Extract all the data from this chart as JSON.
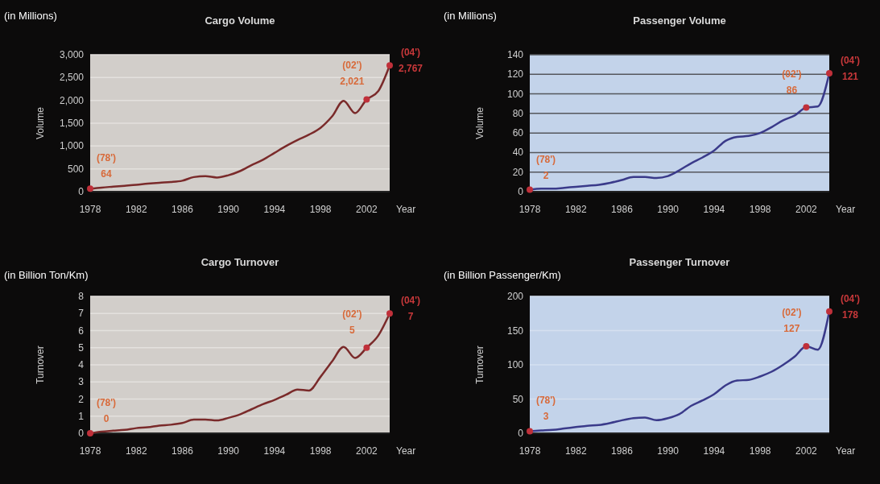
{
  "chart_data": [
    {
      "type": "line",
      "title": "Cargo Volume",
      "subtitle": "(in Millions)",
      "xlabel": "Year",
      "ylabel": "Volume",
      "xlim": [
        1978,
        2004
      ],
      "xticks": [
        1978,
        1982,
        1986,
        1990,
        1994,
        1998,
        2002
      ],
      "ylim": [
        0,
        3000
      ],
      "yticks": [
        0,
        500,
        {
          "value": 1000,
          "label": "1,000"
        },
        {
          "value": 1500,
          "label": "1,500"
        },
        {
          "value": 2000,
          "label": "2,000"
        },
        {
          "value": 2500,
          "label": "2,500"
        },
        {
          "value": 3000,
          "label": "3,000"
        }
      ],
      "grid": "y",
      "series": [
        {
          "color": "#7a2a2a",
          "marker": "none",
          "x": [
            1978,
            1979,
            1980,
            1981,
            1982,
            1983,
            1984,
            1985,
            1986,
            1987,
            1988,
            1989,
            1990,
            1991,
            1992,
            1993,
            1994,
            1995,
            1996,
            1997,
            1998,
            1999,
            2000,
            2001,
            2002,
            2003,
            2004
          ],
          "values": [
            64,
            90,
            110,
            130,
            150,
            175,
            195,
            210,
            240,
            320,
            340,
            310,
            360,
            450,
            580,
            700,
            850,
            1000,
            1130,
            1250,
            1400,
            1650,
            1990,
            1720,
            2021,
            2200,
            2767
          ]
        },
        {
          "type": "scatter",
          "color": "#c0303a",
          "marker": "circle",
          "x": [
            1978,
            2002,
            2004
          ],
          "values": [
            64,
            2021,
            2767
          ]
        }
      ],
      "annotations": [
        {
          "text": "(78')",
          "x": 1978,
          "y": 64
        },
        {
          "text": "64",
          "x": 1978,
          "y": 64
        },
        {
          "text": "(02')",
          "x": 2002,
          "y": 2021
        },
        {
          "text": "2,021",
          "x": 2002,
          "y": 2021
        },
        {
          "text": "(04')",
          "x": 2004,
          "y": 2767
        },
        {
          "text": "2,767",
          "x": 2004,
          "y": 2767
        }
      ]
    },
    {
      "type": "line",
      "title": "Passenger Volume",
      "subtitle": "(in Millions)",
      "xlabel": "Year",
      "ylabel": "Volume",
      "xlim": [
        1978,
        2004
      ],
      "xticks": [
        1978,
        1982,
        1986,
        1990,
        1994,
        1998,
        2002
      ],
      "ylim": [
        0,
        140
      ],
      "yticks": [
        0,
        20,
        40,
        60,
        80,
        100,
        120,
        140
      ],
      "grid": "y",
      "series": [
        {
          "color": "#3a3a8a",
          "marker": "none",
          "x": [
            1978,
            1979,
            1980,
            1981,
            1982,
            1983,
            1984,
            1985,
            1986,
            1987,
            1988,
            1989,
            1990,
            1991,
            1992,
            1993,
            1994,
            1995,
            1996,
            1997,
            1998,
            1999,
            2000,
            2001,
            2002,
            2003,
            2004
          ],
          "values": [
            2,
            3,
            3,
            4,
            5,
            6,
            7,
            9,
            12,
            15,
            15,
            14,
            16,
            22,
            29,
            35,
            42,
            52,
            56,
            57,
            60,
            66,
            73,
            78,
            86,
            87,
            121
          ]
        },
        {
          "type": "scatter",
          "color": "#c0303a",
          "marker": "circle",
          "x": [
            1978,
            2002,
            2004
          ],
          "values": [
            2,
            86,
            121
          ]
        }
      ],
      "annotations": [
        {
          "text": "(78')",
          "x": 1978,
          "y": 2
        },
        {
          "text": "2",
          "x": 1978,
          "y": 2
        },
        {
          "text": "(02')",
          "x": 2002,
          "y": 86
        },
        {
          "text": "86",
          "x": 2002,
          "y": 86
        },
        {
          "text": "(04')",
          "x": 2004,
          "y": 121
        },
        {
          "text": "121",
          "x": 2004,
          "y": 121
        }
      ]
    },
    {
      "type": "line",
      "title": "Cargo Turnover",
      "subtitle": "(in Billion Ton/Km)",
      "xlabel": "Year",
      "ylabel": "Turnover",
      "xlim": [
        1978,
        2004
      ],
      "xticks": [
        1978,
        1982,
        1986,
        1990,
        1994,
        1998,
        2002
      ],
      "ylim": [
        0,
        8
      ],
      "yticks": [
        0,
        1,
        2,
        3,
        4,
        5,
        6,
        7,
        8
      ],
      "grid": "y",
      "series": [
        {
          "color": "#7a2a2a",
          "marker": "none",
          "x": [
            1978,
            1979,
            1980,
            1981,
            1982,
            1983,
            1984,
            1985,
            1986,
            1987,
            1988,
            1989,
            1990,
            1991,
            1992,
            1993,
            1994,
            1995,
            1996,
            1997,
            1998,
            1999,
            2000,
            2001,
            2002,
            2003,
            2004
          ],
          "values": [
            0,
            0.1,
            0.15,
            0.2,
            0.3,
            0.35,
            0.45,
            0.5,
            0.6,
            0.8,
            0.8,
            0.75,
            0.9,
            1.1,
            1.4,
            1.7,
            1.95,
            2.25,
            2.55,
            2.5,
            3.3,
            4.2,
            5.05,
            4.4,
            5,
            5.7,
            7
          ]
        },
        {
          "type": "scatter",
          "color": "#c0303a",
          "marker": "circle",
          "x": [
            1978,
            2002,
            2004
          ],
          "values": [
            0,
            5,
            7
          ]
        }
      ],
      "annotations": [
        {
          "text": "(78')",
          "x": 1978,
          "y": 0
        },
        {
          "text": "0",
          "x": 1978,
          "y": 0
        },
        {
          "text": "(02')",
          "x": 2002,
          "y": 5
        },
        {
          "text": "5",
          "x": 2002,
          "y": 5
        },
        {
          "text": "(04')",
          "x": 2004,
          "y": 7
        },
        {
          "text": "7",
          "x": 2004,
          "y": 7
        }
      ]
    },
    {
      "type": "line",
      "title": "Passenger Turnover",
      "subtitle": "(in Billion Passenger/Km)",
      "xlabel": "Year",
      "ylabel": "Turnover",
      "xlim": [
        1978,
        2004
      ],
      "xticks": [
        1978,
        1982,
        1986,
        1990,
        1994,
        1998,
        2002
      ],
      "ylim": [
        0,
        200
      ],
      "yticks": [
        0,
        50,
        100,
        150,
        200
      ],
      "grid": "y",
      "series": [
        {
          "color": "#3a3a8a",
          "marker": "none",
          "x": [
            1978,
            1979,
            1980,
            1981,
            1982,
            1983,
            1984,
            1985,
            1986,
            1987,
            1988,
            1989,
            1990,
            1991,
            1992,
            1993,
            1994,
            1995,
            1996,
            1997,
            1998,
            1999,
            2000,
            2001,
            2002,
            2003,
            2004
          ],
          "values": [
            3,
            4,
            5,
            7,
            9,
            11,
            12,
            15,
            19,
            22,
            23,
            19,
            22,
            28,
            40,
            48,
            57,
            70,
            77,
            78,
            83,
            90,
            100,
            112,
            127,
            122,
            178
          ]
        },
        {
          "type": "scatter",
          "color": "#c0303a",
          "marker": "circle",
          "x": [
            1978,
            2002,
            2004
          ],
          "values": [
            3,
            127,
            178
          ]
        }
      ],
      "annotations": [
        {
          "text": "(78')",
          "x": 1978,
          "y": 3
        },
        {
          "text": "3",
          "x": 1978,
          "y": 3
        },
        {
          "text": "(02')",
          "x": 2002,
          "y": 127
        },
        {
          "text": "127",
          "x": 2002,
          "y": 127
        },
        {
          "text": "(04')",
          "x": 2004,
          "y": 178
        },
        {
          "text": "178",
          "x": 2004,
          "y": 178
        }
      ]
    }
  ]
}
